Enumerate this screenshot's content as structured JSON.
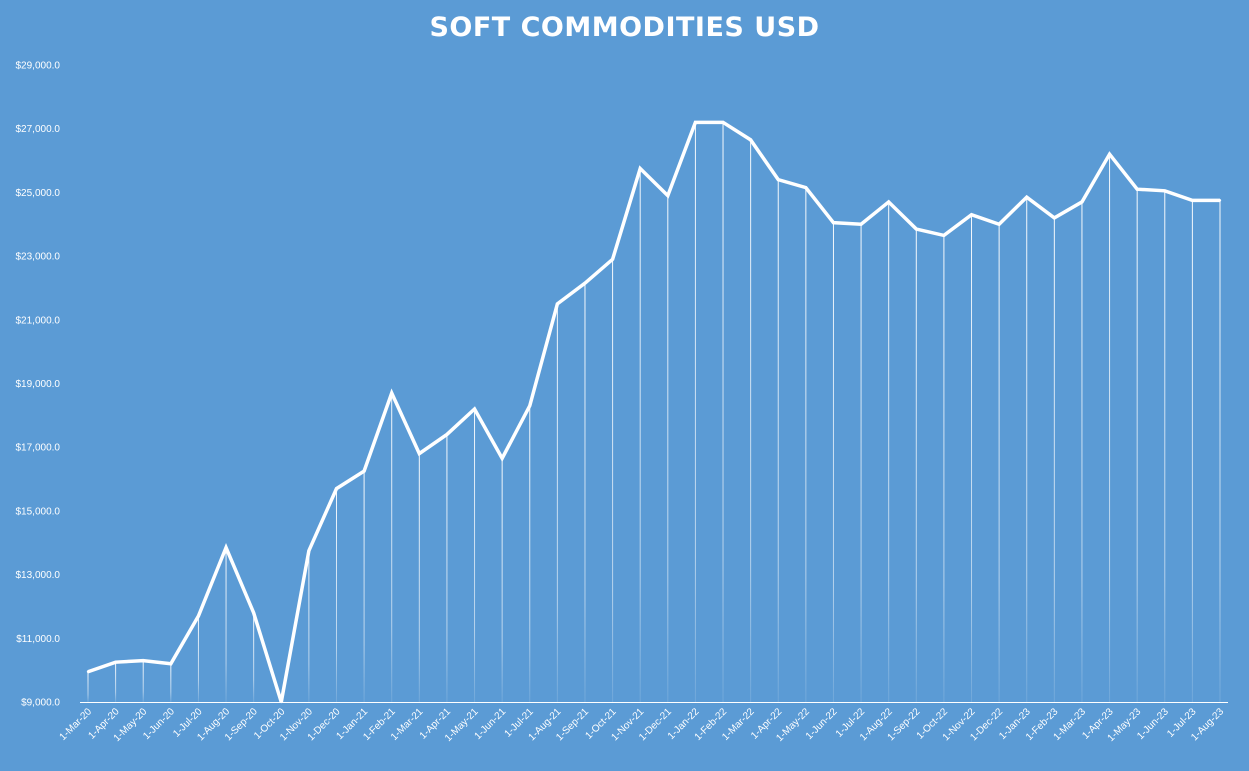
{
  "chart_data": {
    "type": "line",
    "title": "SOFT COMMODITIES USD",
    "xlabel": "",
    "ylabel": "",
    "ylim": [
      9000,
      29000
    ],
    "yticks": [
      "$9,000.0",
      "$11,000.0",
      "$13,000.0",
      "$15,000.0",
      "$17,000.0",
      "$19,000.0",
      "$21,000.0",
      "$23,000.0",
      "$25,000.0",
      "$27,000.0",
      "$29,000.0"
    ],
    "ytick_values": [
      9000,
      11000,
      13000,
      15000,
      17000,
      19000,
      21000,
      23000,
      25000,
      27000,
      29000
    ],
    "categories": [
      "1-Mar-20",
      "1-Apr-20",
      "1-May-20",
      "1-Jun-20",
      "1-Jul-20",
      "1-Aug-20",
      "1-Sep-20",
      "1-Oct-20",
      "1-Nov-20",
      "1-Dec-20",
      "1-Jan-21",
      "1-Feb-21",
      "1-Mar-21",
      "1-Apr-21",
      "1-May-21",
      "1-Jun-21",
      "1-Jul-21",
      "1-Aug-21",
      "1-Sep-21",
      "1-Oct-21",
      "1-Nov-21",
      "1-Dec-21",
      "1-Jan-22",
      "1-Feb-22",
      "1-Mar-22",
      "1-Apr-22",
      "1-May-22",
      "1-Jun-22",
      "1-Jul-22",
      "1-Aug-22",
      "1-Sep-22",
      "1-Oct-22",
      "1-Nov-22",
      "1-Dec-22",
      "1-Jan-23",
      "1-Feb-23",
      "1-Mar-23",
      "1-Apr-23",
      "1-May-23",
      "1-Jun-23",
      "1-Jul-23",
      "1-Aug-23"
    ],
    "series": [
      {
        "values": [
          9950,
          10250,
          10300,
          10200,
          11700,
          13850,
          11800,
          9000,
          13750,
          15700,
          16250,
          18700,
          16800,
          17400,
          18200,
          16650,
          18300,
          21500,
          22150,
          22900,
          25750,
          24900,
          27200,
          27200,
          26650,
          25400,
          25150,
          24050,
          24000,
          24700,
          23850,
          23650,
          24300,
          24000,
          24850,
          24200,
          24700,
          26200,
          25100,
          25050,
          24750,
          24750
        ]
      }
    ],
    "line_color": "#ffffff",
    "background_color": "#5b9bd5",
    "grid": false,
    "drop_lines": true
  }
}
